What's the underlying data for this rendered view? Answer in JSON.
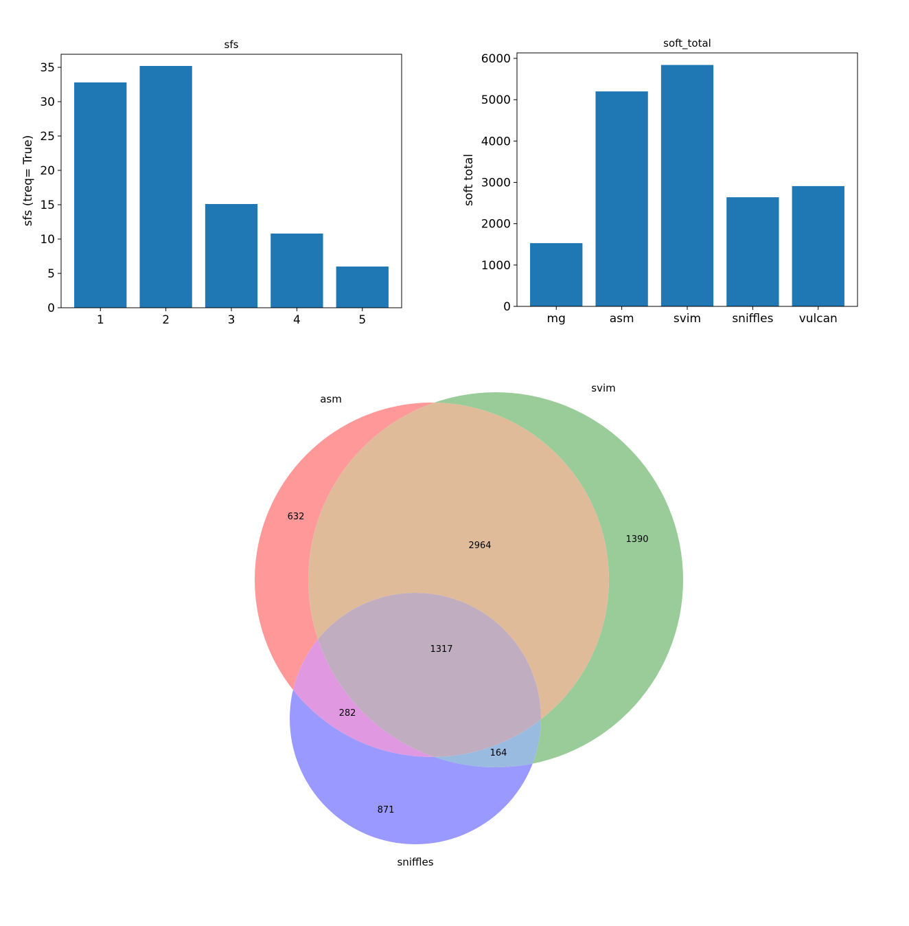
{
  "chart_data": [
    {
      "type": "bar",
      "title": "sfs",
      "xlabel": "",
      "ylabel": "sfs (treq= True)",
      "categories": [
        "1",
        "2",
        "3",
        "4",
        "5"
      ],
      "values": [
        32.8,
        35.2,
        15.1,
        10.8,
        6.0
      ],
      "ylim": [
        0,
        36.9
      ],
      "yticks": [
        0,
        5,
        10,
        15,
        20,
        25,
        30,
        35
      ],
      "bar_color": "#1f77b4",
      "grid": false
    },
    {
      "type": "bar",
      "title": "soft_total",
      "xlabel": "",
      "ylabel": "soft total",
      "categories": [
        "mg",
        "asm",
        "svim",
        "sniffles",
        "vulcan"
      ],
      "values": [
        1530,
        5200,
        5840,
        2640,
        2910
      ],
      "ylim": [
        0,
        6132
      ],
      "yticks": [
        0,
        1000,
        2000,
        3000,
        4000,
        5000,
        6000
      ],
      "bar_color": "#1f77b4",
      "grid": false
    },
    {
      "type": "venn3",
      "sets": [
        {
          "name": "asm",
          "color": "#ff9999"
        },
        {
          "name": "svim",
          "color": "#99cc99"
        },
        {
          "name": "sniffles",
          "color": "#9999ff"
        }
      ],
      "regions": [
        {
          "sets": [
            "asm"
          ],
          "count": "632",
          "color": "#ff9999"
        },
        {
          "sets": [
            "svim"
          ],
          "count": "1390",
          "color": "#99cc99"
        },
        {
          "sets": [
            "asm",
            "svim"
          ],
          "count": "2964",
          "color": "#e0bb99"
        },
        {
          "sets": [
            "sniffles"
          ],
          "count": "871",
          "color": "#9999ff"
        },
        {
          "sets": [
            "asm",
            "sniffles"
          ],
          "count": "282",
          "color": "#e099e0"
        },
        {
          "sets": [
            "svim",
            "sniffles"
          ],
          "count": "164",
          "color": "#99bbe0"
        },
        {
          "sets": [
            "asm",
            "svim",
            "sniffles"
          ],
          "count": "1317",
          "color": "#c0aec0"
        }
      ]
    }
  ]
}
